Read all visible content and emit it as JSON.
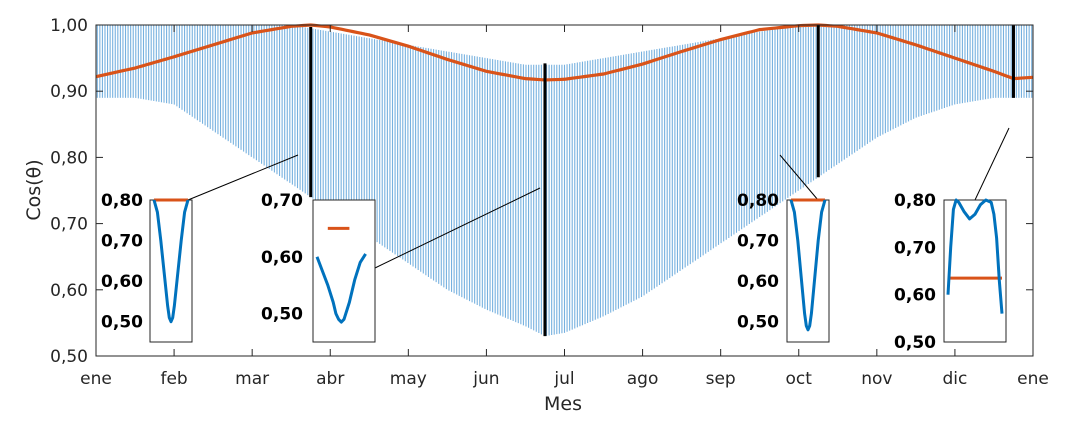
{
  "chart_data": {
    "type": "line",
    "xlabel": "Mes",
    "ylabel": "Cos(θ)",
    "ylim": [
      0.5,
      1.0
    ],
    "xlim": [
      0,
      12
    ],
    "months": [
      "ene",
      "feb",
      "mar",
      "abr",
      "may",
      "jun",
      "jul",
      "ago",
      "sep",
      "oct",
      "nov",
      "dic",
      "ene"
    ],
    "yticks": [
      "1,00",
      "0,90",
      "0,80",
      "0,70",
      "0,60",
      "0,50"
    ],
    "ytick_values": [
      1.0,
      0.9,
      0.8,
      0.7,
      0.6,
      0.5
    ],
    "colors": {
      "bars": "#4a97d4",
      "line": "#d95319",
      "marker": "#000000",
      "inset_curve": "#0072bd"
    },
    "series": [
      {
        "kind": "daily_range",
        "x": [
          0.0,
          0.5,
          1.0,
          1.5,
          2.0,
          2.5,
          3.0,
          3.5,
          4.0,
          4.5,
          5.0,
          5.5,
          5.75,
          6.0,
          6.5,
          7.0,
          7.5,
          8.0,
          8.5,
          9.0,
          9.5,
          10.0,
          10.5,
          11.0,
          11.5,
          12.0
        ],
        "high": [
          1.0,
          1.0,
          1.0,
          1.0,
          1.0,
          1.0,
          0.99,
          0.98,
          0.97,
          0.96,
          0.95,
          0.94,
          0.94,
          0.94,
          0.95,
          0.96,
          0.97,
          0.98,
          0.99,
          1.0,
          1.0,
          1.0,
          1.0,
          1.0,
          1.0,
          1.0
        ],
        "low": [
          0.89,
          0.89,
          0.88,
          0.84,
          0.8,
          0.76,
          0.72,
          0.68,
          0.64,
          0.6,
          0.57,
          0.545,
          0.53,
          0.535,
          0.56,
          0.59,
          0.63,
          0.67,
          0.71,
          0.75,
          0.79,
          0.83,
          0.86,
          0.88,
          0.89,
          0.89
        ]
      },
      {
        "kind": "daily_max",
        "x": [
          0.0,
          0.5,
          1.0,
          1.5,
          2.0,
          2.5,
          2.75,
          3.0,
          3.5,
          4.0,
          4.5,
          5.0,
          5.5,
          5.75,
          6.0,
          6.5,
          7.0,
          7.5,
          8.0,
          8.5,
          9.0,
          9.25,
          9.5,
          10.0,
          10.5,
          11.0,
          11.5,
          11.75,
          12.0
        ],
        "y": [
          0.922,
          0.935,
          0.952,
          0.97,
          0.988,
          0.998,
          1.0,
          0.997,
          0.985,
          0.968,
          0.948,
          0.93,
          0.919,
          0.917,
          0.918,
          0.926,
          0.941,
          0.96,
          0.978,
          0.993,
          0.999,
          1.0,
          0.998,
          0.988,
          0.97,
          0.95,
          0.93,
          0.919,
          0.921
        ]
      }
    ],
    "markers": [
      2.75,
      5.75,
      9.25,
      11.75
    ],
    "insets": [
      {
        "yticks": [
          "0,80",
          "0,70",
          "0,60",
          "0,50"
        ],
        "ylim": [
          0.45,
          0.8
        ],
        "curve_x": [
          0,
          0.1,
          0.2,
          0.3,
          0.4,
          0.45,
          0.5,
          0.55,
          0.6,
          0.7,
          0.8,
          0.9,
          1.0
        ],
        "curve_y": [
          0.8,
          0.77,
          0.7,
          0.62,
          0.54,
          0.51,
          0.5,
          0.51,
          0.54,
          0.62,
          0.7,
          0.77,
          0.8
        ],
        "flat_y": 0.8,
        "flat_x": [
          0.0,
          1.0
        ]
      },
      {
        "yticks": [
          "0,70",
          "0,60",
          "0,50"
        ],
        "ylim": [
          0.45,
          0.7
        ],
        "curve_x": [
          0.0,
          0.1,
          0.2,
          0.3,
          0.35,
          0.4,
          0.45,
          0.5,
          0.6,
          0.7,
          0.8,
          0.9
        ],
        "curve_y": [
          0.6,
          0.575,
          0.55,
          0.52,
          0.5,
          0.49,
          0.485,
          0.49,
          0.52,
          0.56,
          0.59,
          0.605
        ],
        "flat_y": 0.65,
        "flat_x": [
          0.2,
          0.6
        ]
      },
      {
        "yticks": [
          "0,80",
          "0,70",
          "0,60",
          "0,50"
        ],
        "ylim": [
          0.45,
          0.8
        ],
        "curve_x": [
          0,
          0.1,
          0.2,
          0.3,
          0.4,
          0.45,
          0.5,
          0.55,
          0.6,
          0.7,
          0.8,
          0.9,
          1.0
        ],
        "curve_y": [
          0.8,
          0.77,
          0.7,
          0.61,
          0.52,
          0.49,
          0.48,
          0.49,
          0.52,
          0.61,
          0.7,
          0.77,
          0.8
        ],
        "flat_y": 0.8,
        "flat_x": [
          0.0,
          1.0
        ]
      },
      {
        "yticks": [
          "0,80",
          "0,70",
          "0,60",
          "0,50"
        ],
        "ylim": [
          0.5,
          0.8
        ],
        "curve_x": [
          0.0,
          0.05,
          0.1,
          0.15,
          0.2,
          0.3,
          0.4,
          0.5,
          0.6,
          0.7,
          0.8,
          0.85,
          0.9,
          0.95,
          1.0
        ],
        "curve_y": [
          0.6,
          0.7,
          0.78,
          0.8,
          0.795,
          0.775,
          0.76,
          0.77,
          0.79,
          0.8,
          0.795,
          0.77,
          0.72,
          0.63,
          0.56
        ],
        "flat_y": 0.635,
        "flat_x": [
          0.0,
          1.0
        ]
      }
    ]
  }
}
